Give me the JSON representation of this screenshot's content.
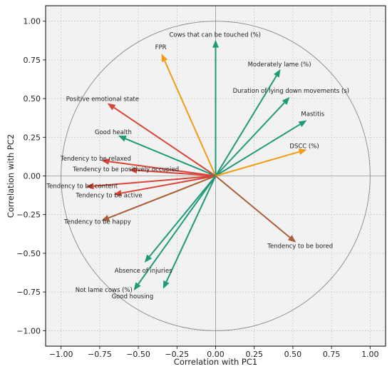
{
  "chart_data": {
    "type": "scatter",
    "subtype": "pca-correlation-circle",
    "title": "",
    "xlabel": "Correlation with PC1",
    "ylabel": "Correlation with PC2",
    "xlim": [
      -1.1,
      1.1
    ],
    "ylim": [
      -1.1,
      1.1
    ],
    "xticks": [
      "−1.00",
      "−0.75",
      "−0.50",
      "−0.25",
      "0.00",
      "0.25",
      "0.50",
      "0.75",
      "1.00"
    ],
    "yticks": [
      "−1.00",
      "−0.75",
      "−0.50",
      "−0.25",
      "0.00",
      "0.25",
      "0.50",
      "0.75",
      "1.00"
    ],
    "tick_values": [
      -1.0,
      -0.75,
      -0.5,
      -0.25,
      0.0,
      0.25,
      0.5,
      0.75,
      1.0
    ],
    "grid": true,
    "unit_circle": true,
    "background": "#f2f2f2",
    "colors": {
      "green": "#1f9a78",
      "orange": "#f29c14",
      "red": "#d94436",
      "brown": "#a85f38",
      "axis": "#999999",
      "circle": "#888888"
    },
    "vectors": [
      {
        "label": "Cows that can be touched (%)",
        "x": 0.0,
        "y": 0.88,
        "color": "green"
      },
      {
        "label": "FPR",
        "x": -0.35,
        "y": 0.79,
        "color": "orange"
      },
      {
        "label": "Moderately lame (%)",
        "x": 0.42,
        "y": 0.69,
        "color": "green"
      },
      {
        "label": "Duration of lying down movements (s)",
        "x": 0.48,
        "y": 0.51,
        "color": "green"
      },
      {
        "label": "Positive emotional state",
        "x": -0.7,
        "y": 0.47,
        "color": "red"
      },
      {
        "label": "Mastitis",
        "x": 0.59,
        "y": 0.36,
        "color": "green"
      },
      {
        "label": "Good health",
        "x": -0.63,
        "y": 0.26,
        "color": "green"
      },
      {
        "label": "DSCC (%)",
        "x": 0.59,
        "y": 0.17,
        "color": "orange"
      },
      {
        "label": "Tendency to be relaxed",
        "x": -0.74,
        "y": 0.1,
        "color": "red"
      },
      {
        "label": "Tendency to be positively occupied",
        "x": -0.56,
        "y": 0.04,
        "color": "red"
      },
      {
        "label": "Tendency to be content",
        "x": -0.84,
        "y": -0.07,
        "color": "red"
      },
      {
        "label": "Tendency to be active",
        "x": -0.66,
        "y": -0.12,
        "color": "red"
      },
      {
        "label": "Tendency to be happy",
        "x": -0.74,
        "y": -0.29,
        "color": "brown"
      },
      {
        "label": "Tendency to be bored",
        "x": 0.52,
        "y": -0.43,
        "color": "brown"
      },
      {
        "label": "Absence of injuries",
        "x": -0.46,
        "y": -0.56,
        "color": "green"
      },
      {
        "label": "Not lame cows (%)",
        "x": -0.34,
        "y": -0.73,
        "color": "green"
      },
      {
        "label": "Good housing",
        "x": -0.53,
        "y": -0.74,
        "color": "green"
      }
    ]
  }
}
